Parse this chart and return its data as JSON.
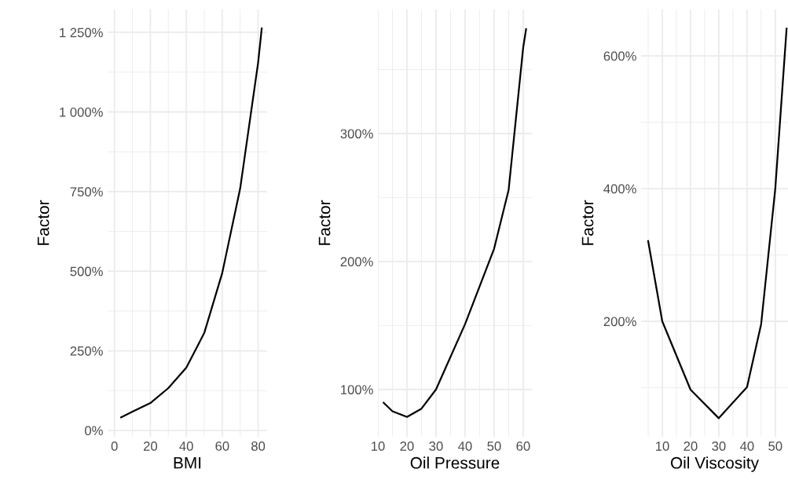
{
  "chart_data": [
    {
      "type": "line",
      "xlabel": "BMI",
      "ylabel": "Factor",
      "grid": true,
      "xlim": [
        -3.8,
        85
      ],
      "ylim": [
        -20,
        1322
      ],
      "xticks": [
        0,
        {
          "value": 10,
          "label": null
        },
        20,
        {
          "value": 30,
          "label": null
        },
        40,
        {
          "value": 50,
          "label": null
        },
        60,
        {
          "value": 70,
          "label": null
        },
        80
      ],
      "yticks": [
        {
          "value": 0,
          "label": "0%"
        },
        {
          "value": 125,
          "label": null
        },
        {
          "value": 250,
          "label": "250%"
        },
        {
          "value": 375,
          "label": null
        },
        {
          "value": 500,
          "label": "500%"
        },
        {
          "value": 625,
          "label": null
        },
        {
          "value": 750,
          "label": "750%"
        },
        {
          "value": 875,
          "label": null
        },
        {
          "value": 1000,
          "label": "1 000%"
        },
        {
          "value": 1125,
          "label": null
        },
        {
          "value": 1250,
          "label": "1 250%"
        }
      ],
      "series": [
        {
          "color": "#000000",
          "x": [
            3.7,
            10,
            20,
            30,
            40,
            50,
            60,
            70,
            80,
            82
          ],
          "values": [
            41,
            59,
            86,
            133,
            197,
            306,
            494,
            760,
            1155,
            1262
          ]
        }
      ]
    },
    {
      "type": "line",
      "xlabel": "Oil Pressure",
      "ylabel": "Factor",
      "grid": true,
      "xlim": [
        10,
        63
      ],
      "ylim": [
        63,
        397
      ],
      "xticks": [
        10,
        {
          "value": 15,
          "label": null
        },
        20,
        {
          "value": 25,
          "label": null
        },
        30,
        {
          "value": 35,
          "label": null
        },
        40,
        {
          "value": 45,
          "label": null
        },
        50,
        {
          "value": 55,
          "label": null
        },
        60
      ],
      "yticks": [
        {
          "value": 100,
          "label": "100%"
        },
        {
          "value": 150,
          "label": null
        },
        {
          "value": 200,
          "label": "200%"
        },
        {
          "value": 250,
          "label": null
        },
        {
          "value": 300,
          "label": "300%"
        },
        {
          "value": 350,
          "label": null
        }
      ],
      "series": [
        {
          "color": "#000000",
          "x": [
            12,
            15,
            20,
            25,
            30,
            40,
            50,
            55,
            60,
            61
          ],
          "values": [
            89.6,
            83,
            78.5,
            85,
            100,
            151,
            210,
            256,
            367,
            381.6
          ]
        }
      ]
    },
    {
      "type": "line",
      "xlabel": "Oil Viscosity",
      "ylabel": "Factor",
      "grid": true,
      "xlim": [
        2.5,
        54.5
      ],
      "ylim": [
        26,
        670
      ],
      "xticks": [
        {
          "value": 5,
          "label": null
        },
        10,
        {
          "value": 15,
          "label": null
        },
        20,
        {
          "value": 25,
          "label": null
        },
        30,
        {
          "value": 35,
          "label": null
        },
        40,
        {
          "value": 45,
          "label": null
        },
        50
      ],
      "yticks": [
        {
          "value": 100,
          "label": null
        },
        {
          "value": 200,
          "label": "200%"
        },
        {
          "value": 300,
          "label": null
        },
        {
          "value": 400,
          "label": "400%"
        },
        {
          "value": 500,
          "label": null
        },
        {
          "value": 600,
          "label": "600%"
        }
      ],
      "series": [
        {
          "color": "#000000",
          "x": [
            5,
            10,
            20,
            30,
            40,
            45,
            50,
            54
          ],
          "values": [
            321,
            200,
            97,
            54,
            101,
            196,
            400,
            641
          ]
        }
      ]
    }
  ]
}
